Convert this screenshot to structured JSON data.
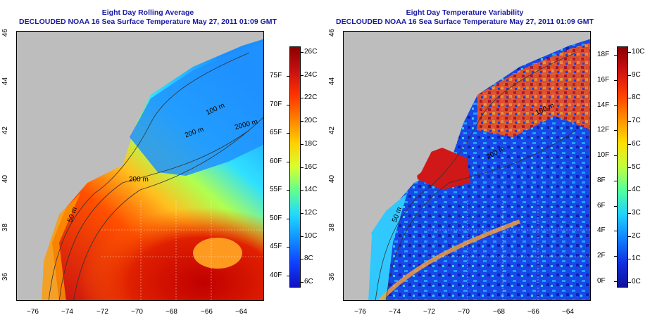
{
  "colors": {
    "title": "#1a1aa6",
    "land": "#bdbdbd"
  },
  "panels": [
    {
      "id": "left",
      "title_line1": "Eight Day Rolling Average",
      "title_line2": "DECLOUDED NOAA 16 Sea Surface Temperature May 27, 2011 01:09 GMT",
      "x_ticks": [
        "−76",
        "−74",
        "−72",
        "−70",
        "−68",
        "−66",
        "−64"
      ],
      "y_ticks": [
        "46",
        "44",
        "42",
        "40",
        "38",
        "36"
      ],
      "contour_labels": [
        "100 m",
        "200 m",
        "2000 m",
        "200 m",
        "50 m"
      ],
      "colorbar_c": [
        "26C",
        "24C",
        "22C",
        "20C",
        "18C",
        "16C",
        "14C",
        "12C",
        "10C",
        "8C",
        "6C"
      ],
      "colorbar_f": [
        "75F",
        "70F",
        "65F",
        "60F",
        "55F",
        "50F",
        "45F",
        "40F"
      ],
      "colorbar_colors": [
        "#8b0000",
        "#c81010",
        "#ff3300",
        "#ff8000",
        "#ffd000",
        "#d8ff30",
        "#60ff90",
        "#20d8ff",
        "#1090ff",
        "#1040ff",
        "#1010c0"
      ]
    },
    {
      "id": "right",
      "title_line1": "Eight Day Temperature Variability",
      "title_line2": "DECLOUDED NOAA 16 Sea Surface Temperature May 27, 2011 01:09 GMT",
      "x_ticks": [
        "−76",
        "−74",
        "−72",
        "−70",
        "−68",
        "−66",
        "−64"
      ],
      "y_ticks": [
        "46",
        "44",
        "42",
        "40",
        "38",
        "36"
      ],
      "contour_labels": [
        "50 m",
        "200 m",
        "100 m"
      ],
      "colorbar_c": [
        "10C",
        "9C",
        "8C",
        "7C",
        "6C",
        "5C",
        "4C",
        "3C",
        "2C",
        "1C",
        "0C"
      ],
      "colorbar_f": [
        "18F",
        "16F",
        "14F",
        "12F",
        "10F",
        "8F",
        "6F",
        "4F",
        "2F",
        "0F"
      ],
      "colorbar_colors": [
        "#8b0000",
        "#d01010",
        "#ff4000",
        "#ff9000",
        "#ffe000",
        "#c0ff40",
        "#50ffa0",
        "#20d0ff",
        "#1080ff",
        "#1030e0",
        "#10109a"
      ]
    }
  ]
}
